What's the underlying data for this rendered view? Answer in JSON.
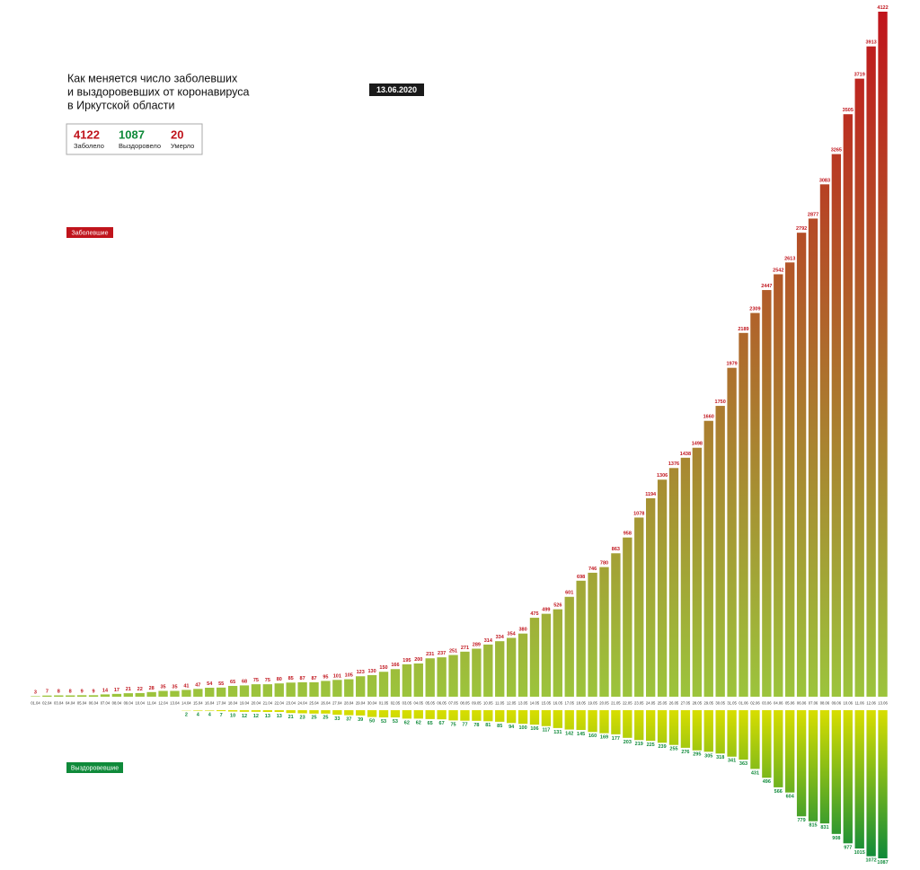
{
  "chart_data": {
    "type": "bar",
    "title_lines": [
      "Как меняется число заболевших",
      "и выздоровевших от коронавируса",
      "в Иркутской области"
    ],
    "date": "13.06.2020",
    "stats": [
      {
        "value": 4122,
        "label": "Заболело",
        "color": "#c0141c"
      },
      {
        "value": 1087,
        "label": "Выздоровело",
        "color": "#0f8a3a"
      },
      {
        "value": 20,
        "label": "Умерло",
        "color": "#c0141c"
      }
    ],
    "categories": [
      "01.04",
      "02.04",
      "03.04",
      "04.04",
      "05.04",
      "06.04",
      "07.04",
      "08.04",
      "09.04",
      "10.04",
      "11.04",
      "12.04",
      "13.04",
      "14.04",
      "15.04",
      "16.04",
      "17.04",
      "18.04",
      "19.04",
      "20.04",
      "21.04",
      "22.04",
      "23.04",
      "24.04",
      "25.04",
      "26.04",
      "27.04",
      "28.04",
      "29.04",
      "30.04",
      "01.05",
      "02.05",
      "03.05",
      "04.05",
      "05.05",
      "06.05",
      "07.05",
      "08.05",
      "09.05",
      "10.05",
      "11.05",
      "12.05",
      "13.05",
      "14.05",
      "15.05",
      "16.05",
      "17.05",
      "18.05",
      "19.05",
      "20.05",
      "21.05",
      "22.05",
      "23.05",
      "24.05",
      "25.05",
      "26.05",
      "27.05",
      "28.05",
      "29.05",
      "30.05",
      "31.05",
      "01.06",
      "02.06",
      "03.06",
      "04.06",
      "05.06",
      "06.06",
      "07.06",
      "08.06",
      "09.06",
      "10.06",
      "11.06",
      "12.06",
      "13.06"
    ],
    "series": [
      {
        "name": "Заболевшие",
        "color": "#c0141c",
        "color_bottom": "#9cc43c",
        "values": [
          3,
          7,
          8,
          8,
          9,
          9,
          14,
          17,
          21,
          22,
          28,
          35,
          35,
          41,
          47,
          54,
          55,
          65,
          68,
          75,
          75,
          80,
          85,
          87,
          87,
          95,
          101,
          105,
          123,
          130,
          150,
          166,
          195,
          200,
          231,
          237,
          251,
          271,
          289,
          314,
          334,
          354,
          380,
          475,
          499,
          526,
          601,
          698,
          746,
          780,
          863,
          958,
          1078,
          1194,
          1306,
          1376,
          1438,
          1498,
          1660,
          1750,
          1979,
          2189,
          2309,
          2447,
          2542,
          2613,
          2792,
          2877,
          3083,
          3265,
          3505,
          3719,
          3913,
          4122
        ]
      },
      {
        "name": "Выздоровевшие",
        "color": "#0f8a3a",
        "color_top": "#d8de00",
        "values": [
          null,
          null,
          null,
          null,
          null,
          null,
          null,
          null,
          null,
          null,
          null,
          null,
          null,
          2,
          4,
          4,
          7,
          10,
          12,
          12,
          13,
          13,
          21,
          23,
          25,
          25,
          33,
          37,
          39,
          50,
          53,
          53,
          62,
          62,
          65,
          67,
          75,
          77,
          78,
          81,
          85,
          94,
          100,
          106,
          117,
          131,
          142,
          145,
          160,
          169,
          177,
          203,
          219,
          225,
          239,
          255,
          276,
          295,
          305,
          318,
          341,
          363,
          431,
          496,
          566,
          604,
          779,
          815,
          831,
          908,
          977,
          1015,
          1072,
          1087
        ]
      }
    ]
  }
}
